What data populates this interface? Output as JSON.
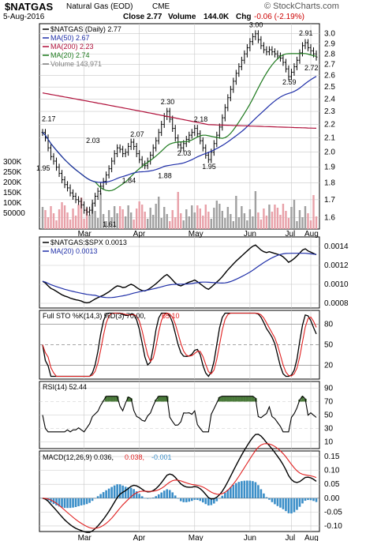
{
  "header": {
    "symbol": "$NATGAS",
    "description": "Natural Gas (EOD)",
    "exchange": "CME",
    "date": "5-Aug-2016",
    "close_label": "Close",
    "close_value": "2.77",
    "volume_label": "Volume",
    "volume_value": "144.0K",
    "chg_label": "Chg",
    "chg_value": "-0.06 (-2.19%)",
    "brand": "© StockCharts.com"
  },
  "colors": {
    "price_bar": "#000000",
    "ma50": "#1f2fa8",
    "ma200": "#b0103a",
    "ma20": "#1e7a1e",
    "volume_up": "#a0a0a0",
    "volume_down": "#e8a0a8",
    "ratio": "#000000",
    "ratio_ma": "#1f2fa8",
    "sto_k": "#000000",
    "sto_d": "#e02020",
    "rsi": "#000000",
    "rsi_fill": "#4a7a3a",
    "macd": "#000000",
    "signal": "#e02020",
    "histogram": "#3a8ec8",
    "grid": "#c8c8c8",
    "chg_negative": "#cc0000"
  },
  "chart_data": [
    {
      "type": "ohlc",
      "panel": "price",
      "legend": [
        {
          "text": "$NATGAS (Daily) 2.77",
          "color": "#000000"
        },
        {
          "text": "MA(50) 2.67",
          "color": "#1f2fa8"
        },
        {
          "text": "MA(200) 2.23",
          "color": "#b0103a"
        },
        {
          "text": "MA(20) 2.74",
          "color": "#1e7a1e"
        },
        {
          "text": "Volume 143,971",
          "color": "#808080"
        }
      ],
      "yaxis": {
        "scale": "log",
        "ylim": [
          1.55,
          3.1
        ],
        "ticks": [
          "3.0",
          "2.9",
          "2.8",
          "2.7",
          "2.6",
          "2.5",
          "2.4",
          "2.3",
          "2.2",
          "2.1",
          "2.0",
          "1.9",
          "1.8",
          "1.7",
          "1.6"
        ]
      },
      "xaxis": {
        "ticks": [
          "Mar",
          "Apr",
          "May",
          "Jun",
          "Jul",
          "Aug"
        ]
      },
      "annotations": [
        "2.17",
        "1.95",
        "2.03",
        "1.84",
        "1.61",
        "2.07",
        "1.88",
        "2.30",
        "2.03",
        "2.18",
        "1.95",
        "3.00",
        "2.91",
        "2.59",
        "2.72"
      ],
      "price_series": [
        2.14,
        2.1,
        2.03,
        1.97,
        1.94,
        1.9,
        1.86,
        1.82,
        1.79,
        1.77,
        1.74,
        1.72,
        1.7,
        1.69,
        1.67,
        1.64,
        1.63,
        1.64,
        1.68,
        1.72,
        1.75,
        1.78,
        1.81,
        1.85,
        1.89,
        1.94,
        1.99,
        2.03,
        2.02,
        1.99,
        2.0,
        2.04,
        2.07,
        2.04,
        1.99,
        1.95,
        1.92,
        1.91,
        1.94,
        1.98,
        2.03,
        2.08,
        2.14,
        2.2,
        2.26,
        2.3,
        2.24,
        2.17,
        2.1,
        2.05,
        2.03,
        2.06,
        2.09,
        2.12,
        2.14,
        2.17,
        2.13,
        2.08,
        2.03,
        1.98,
        1.95,
        2.0,
        2.06,
        2.12,
        2.18,
        2.25,
        2.33,
        2.41,
        2.48,
        2.55,
        2.62,
        2.68,
        2.74,
        2.8,
        2.86,
        2.92,
        2.97,
        3.0,
        2.94,
        2.88,
        2.84,
        2.82,
        2.84,
        2.82,
        2.8,
        2.78,
        2.76,
        2.72,
        2.66,
        2.59,
        2.63,
        2.68,
        2.74,
        2.81,
        2.88,
        2.91,
        2.86,
        2.83,
        2.8,
        2.77
      ],
      "volume_axis": [
        "300K",
        "250K",
        "200K",
        "150K",
        "100K",
        "50000"
      ]
    },
    {
      "type": "line",
      "panel": "ratio",
      "legend": [
        {
          "text": "$NATGAS:$SPX 0.0013",
          "color": "#000000"
        },
        {
          "text": "MA(20) 0.0013",
          "color": "#1f2fa8"
        }
      ],
      "yaxis": {
        "ticks": [
          "0.0014",
          "0.0012",
          "0.0010",
          "0.0008"
        ]
      }
    },
    {
      "type": "line",
      "panel": "stochastic",
      "legend": [
        {
          "text": "Full STO %K(14,3) %D(3) 70.00,",
          "color": "#000000"
        },
        {
          "text": "65.10",
          "color": "#e02020"
        }
      ],
      "yaxis": {
        "ticks": [
          "80",
          "50",
          "20"
        ],
        "ylim": [
          0,
          100
        ]
      }
    },
    {
      "type": "line",
      "panel": "rsi",
      "legend": [
        {
          "text": "RSI(14) 52.44",
          "color": "#000000"
        }
      ],
      "yaxis": {
        "ticks": [
          "90",
          "70",
          "50",
          "30",
          "10"
        ],
        "ylim": [
          0,
          100
        ]
      }
    },
    {
      "type": "line",
      "panel": "macd",
      "legend": [
        {
          "text": "MACD(12,26,9) 0.036,",
          "color": "#000000"
        },
        {
          "text": "0.038,",
          "color": "#e02020"
        },
        {
          "text": "-0.001",
          "color": "#3a8ec8"
        }
      ],
      "yaxis": {
        "ticks": [
          "0.15",
          "0.10",
          "0.05",
          "0.00",
          "-0.05",
          "-0.10"
        ],
        "ylim": [
          -0.12,
          0.17
        ]
      }
    }
  ]
}
